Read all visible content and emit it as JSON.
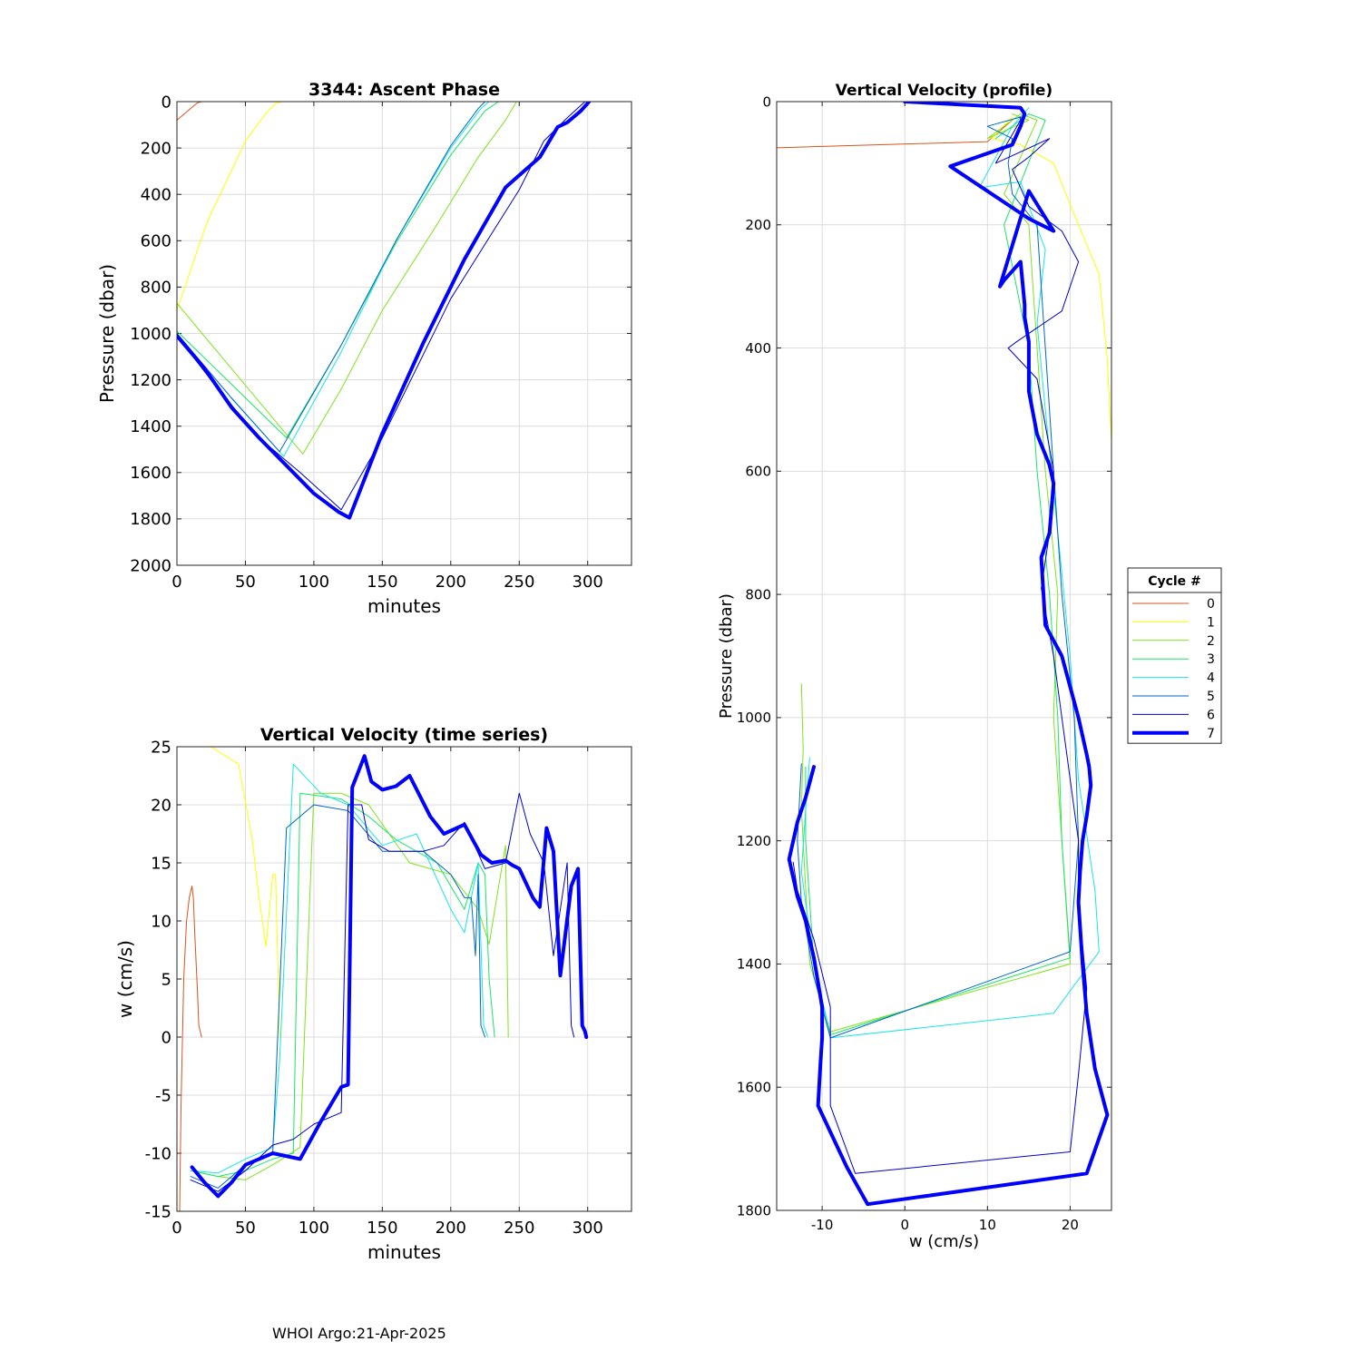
{
  "footer": "WHOI Argo:21-Apr-2025",
  "series_colors": [
    "#d95319",
    "#ffff00",
    "#7fe31a",
    "#19e566",
    "#19e5e5",
    "#0066cc",
    "#0000cc",
    "#0000ff"
  ],
  "chart_data": [
    {
      "id": "ascent",
      "type": "line",
      "title": "3344: Ascent Phase",
      "xlabel": "minutes",
      "ylabel": "Pressure (dbar)",
      "xlim": [
        0,
        332
      ],
      "ylim": [
        0,
        2000
      ],
      "y_reversed": true,
      "xticks": [
        0,
        50,
        100,
        150,
        200,
        250,
        300
      ],
      "yticks": [
        0,
        200,
        400,
        600,
        800,
        1000,
        1200,
        1400,
        1600,
        1800,
        2000
      ],
      "grid": true,
      "series": [
        {
          "name": "0",
          "x": [
            0,
            15,
            18
          ],
          "y": [
            80,
            5,
            0
          ]
        },
        {
          "name": "1",
          "x": [
            0,
            22,
            50,
            65,
            72,
            76
          ],
          "y": [
            900,
            520,
            170,
            50,
            8,
            0
          ]
        },
        {
          "name": "2",
          "x": [
            0,
            92,
            120,
            150,
            190,
            220,
            240,
            248
          ],
          "y": [
            870,
            1520,
            1240,
            900,
            530,
            240,
            80,
            0
          ]
        },
        {
          "name": "3",
          "x": [
            0,
            80,
            120,
            160,
            200,
            225,
            235
          ],
          "y": [
            990,
            1450,
            1050,
            610,
            230,
            40,
            0
          ]
        },
        {
          "name": "4",
          "x": [
            0,
            40,
            78,
            120,
            160,
            200,
            222,
            228
          ],
          "y": [
            1000,
            1280,
            1530,
            1080,
            600,
            200,
            30,
            0
          ]
        },
        {
          "name": "5",
          "x": [
            0,
            40,
            75,
            120,
            160,
            200,
            220,
            225
          ],
          "y": [
            1000,
            1280,
            1510,
            1050,
            600,
            190,
            30,
            0
          ]
        },
        {
          "name": "6",
          "x": [
            0,
            30,
            60,
            90,
            120,
            150,
            200,
            250,
            268,
            285,
            298
          ],
          "y": [
            1010,
            1240,
            1450,
            1600,
            1760,
            1450,
            850,
            380,
            170,
            70,
            0
          ]
        },
        {
          "name": "7",
          "x": [
            0,
            20,
            40,
            60,
            80,
            100,
            118,
            126,
            150,
            180,
            210,
            240,
            265,
            278,
            285,
            295,
            301
          ],
          "y": [
            1010,
            1150,
            1320,
            1450,
            1570,
            1690,
            1770,
            1795,
            1430,
            1040,
            680,
            370,
            240,
            110,
            90,
            40,
            0
          ]
        }
      ]
    },
    {
      "id": "timeseries",
      "type": "line",
      "title": "Vertical Velocity (time series)",
      "xlabel": "minutes",
      "ylabel": "w (cm/s)",
      "xlim": [
        0,
        332
      ],
      "ylim": [
        -15,
        25
      ],
      "xticks": [
        0,
        50,
        100,
        150,
        200,
        250,
        300
      ],
      "yticks": [
        -15,
        -10,
        -5,
        0,
        5,
        10,
        15,
        20,
        25
      ],
      "grid": true,
      "series": [
        {
          "name": "0",
          "x": [
            2,
            3,
            5,
            7,
            9,
            11,
            12,
            13,
            15,
            16,
            18
          ],
          "y": [
            -15,
            -6,
            5,
            10,
            12,
            13,
            12,
            9,
            4,
            1,
            0
          ]
        },
        {
          "name": "1",
          "x": [
            18,
            25,
            45,
            55,
            60,
            65,
            70,
            72,
            74,
            75
          ],
          "y": [
            25,
            25,
            23.5,
            17,
            12,
            7.8,
            14,
            14,
            5,
            0
          ]
        },
        {
          "name": "2",
          "x": [
            10,
            30,
            50,
            70,
            90,
            100,
            120,
            140,
            170,
            200,
            220,
            228,
            235,
            240,
            242
          ],
          "y": [
            -11.5,
            -12,
            -12.3,
            -11,
            -9.5,
            21,
            21,
            20,
            15,
            14,
            11,
            8,
            13,
            16.5,
            0
          ]
        },
        {
          "name": "3",
          "x": [
            10,
            30,
            50,
            70,
            85,
            90,
            120,
            140,
            160,
            190,
            210,
            220,
            225,
            228,
            232
          ],
          "y": [
            -11.5,
            -12,
            -11.5,
            -10.5,
            -10,
            21,
            20.5,
            19,
            17,
            15,
            11,
            15,
            14,
            5,
            0
          ]
        },
        {
          "name": "4",
          "x": [
            10,
            30,
            50,
            70,
            75,
            85,
            105,
            125,
            150,
            175,
            200,
            210,
            215,
            220,
            224,
            227
          ],
          "y": [
            -11.5,
            -11.7,
            -10.5,
            -9.5,
            -2,
            23.5,
            21,
            20,
            16.5,
            17.5,
            11,
            9,
            12,
            15,
            1,
            0
          ]
        },
        {
          "name": "5",
          "x": [
            10,
            30,
            50,
            70,
            75,
            80,
            100,
            125,
            150,
            180,
            200,
            210,
            215,
            218,
            220,
            222,
            225
          ],
          "y": [
            -12,
            -13,
            -11,
            -10,
            4,
            18,
            20,
            19.5,
            16,
            16,
            14,
            12,
            12,
            7,
            14,
            1,
            0
          ]
        },
        {
          "name": "6",
          "x": [
            10,
            30,
            50,
            70,
            85,
            100,
            120,
            125,
            135,
            140,
            155,
            180,
            195,
            210,
            225,
            240,
            250,
            258,
            268,
            275,
            285,
            288,
            290
          ],
          "y": [
            -12.3,
            -13.3,
            -11.5,
            -9.3,
            -8.8,
            -7.5,
            -6.5,
            20,
            20,
            17,
            16,
            16,
            16.5,
            18.5,
            14.5,
            15,
            21,
            17.5,
            15,
            7,
            15,
            1,
            0
          ]
        },
        {
          "name": "7",
          "x": [
            11,
            20,
            30,
            40,
            50,
            70,
            90,
            105,
            120,
            125,
            128,
            137,
            142,
            150,
            160,
            170,
            185,
            195,
            210,
            222,
            230,
            240,
            245,
            250,
            260,
            265,
            270,
            275,
            280,
            288,
            293,
            296,
            298,
            299
          ],
          "y": [
            -11.2,
            -12.5,
            -13.7,
            -12.5,
            -11,
            -10,
            -10.5,
            -7.3,
            -4.3,
            -4.1,
            21.5,
            24.2,
            22,
            21.3,
            21.6,
            22.5,
            19,
            17.5,
            18.3,
            15.7,
            15,
            15.2,
            14.8,
            14.5,
            12,
            11.2,
            18,
            16,
            5.3,
            13,
            14.5,
            1,
            0.5,
            0
          ]
        }
      ]
    },
    {
      "id": "profile",
      "type": "line",
      "title": "Vertical Velocity (profile)",
      "xlabel": "w (cm/s)",
      "ylabel": "Pressure (dbar)",
      "xlim": [
        -15.5,
        25
      ],
      "ylim": [
        0,
        1800
      ],
      "y_reversed": true,
      "xticks": [
        -10,
        0,
        10,
        20
      ],
      "yticks": [
        0,
        200,
        400,
        600,
        800,
        1000,
        1200,
        1400,
        1600,
        1800
      ],
      "grid": true,
      "legend": {
        "title": "Cycle #",
        "entries": [
          "0",
          "1",
          "2",
          "3",
          "4",
          "5",
          "6",
          "7"
        ],
        "placement": "right"
      },
      "series": [
        {
          "name": "0",
          "x": [
            -15.5,
            10,
            13
          ],
          "y": [
            75,
            65,
            30
          ]
        },
        {
          "name": "1",
          "x": [
            13,
            10.5,
            14,
            18,
            21,
            23.5,
            24.5,
            25,
            25
          ],
          "y": [
            25,
            60,
            70,
            100,
            200,
            280,
            420,
            550,
            680
          ]
        },
        {
          "name": "2",
          "x": [
            -12.5,
            -12.3,
            -12.5,
            -11.5,
            -9,
            20,
            19,
            18,
            18.5,
            17,
            16,
            15,
            12,
            16,
            14,
            10,
            15,
            13
          ],
          "y": [
            945,
            1050,
            1150,
            1400,
            1510,
            1400,
            1200,
            1000,
            800,
            600,
            400,
            200,
            150,
            30,
            20,
            60,
            30,
            20
          ]
        },
        {
          "name": "3",
          "x": [
            -12,
            -12,
            -11,
            -9,
            20,
            19,
            18.5,
            17.5,
            16,
            15,
            12,
            17,
            15,
            11
          ],
          "y": [
            1080,
            1200,
            1400,
            1515,
            1390,
            1200,
            1000,
            800,
            600,
            400,
            200,
            30,
            20,
            60
          ]
        },
        {
          "name": "4",
          "x": [
            -11.5,
            -12,
            -12.5,
            -11,
            -9,
            18,
            23.5,
            23,
            21,
            20,
            18.5,
            17,
            16,
            17,
            15,
            14,
            9,
            13,
            15
          ],
          "y": [
            1065,
            1150,
            1250,
            1400,
            1520,
            1480,
            1380,
            1280,
            1100,
            900,
            700,
            500,
            360,
            240,
            170,
            130,
            140,
            40,
            10
          ]
        },
        {
          "name": "5",
          "x": [
            -12.5,
            -13,
            -12.5,
            -11,
            -9,
            20,
            21,
            20.5,
            19,
            18,
            17,
            16,
            13,
            12.5,
            13,
            10,
            14
          ],
          "y": [
            1075,
            1200,
            1300,
            1420,
            1520,
            1380,
            1200,
            1000,
            800,
            600,
            400,
            200,
            150,
            100,
            60,
            40,
            25
          ]
        },
        {
          "name": "6",
          "x": [
            -13.5,
            -13,
            -11,
            -9,
            -9,
            -9,
            -6,
            20,
            21,
            22,
            21,
            21,
            19,
            18,
            16.5,
            17.5,
            18,
            16,
            12.5,
            13.5,
            19,
            21,
            19,
            15,
            13,
            15,
            17.5,
            11,
            14,
            14
          ],
          "y": [
            1235,
            1280,
            1360,
            1470,
            1520,
            1630,
            1740,
            1705,
            1580,
            1440,
            1300,
            1200,
            1000,
            900,
            790,
            700,
            600,
            450,
            400,
            390,
            340,
            260,
            210,
            170,
            110,
            90,
            60,
            100,
            30,
            25
          ]
        },
        {
          "name": "7",
          "x": [
            -11,
            -12,
            -13,
            -14,
            -13,
            -12,
            -11,
            -10.5,
            -10,
            -10,
            -10.2,
            -10.5,
            -7,
            -4.5,
            22,
            24.5,
            23,
            22,
            21.5,
            21,
            21.2,
            21.5,
            22,
            22.5,
            22.3,
            22,
            21,
            19,
            17,
            16.5,
            17.5,
            18,
            17.5,
            16,
            15,
            15,
            14.5,
            14.5,
            14,
            12,
            11.5,
            15,
            18,
            15,
            5.5,
            13,
            14,
            14.5,
            14,
            0
          ],
          "y": [
            1080,
            1130,
            1170,
            1230,
            1290,
            1330,
            1390,
            1430,
            1470,
            1520,
            1560,
            1630,
            1730,
            1790,
            1740,
            1645,
            1570,
            1480,
            1400,
            1300,
            1250,
            1200,
            1160,
            1110,
            1080,
            1060,
            1000,
            900,
            850,
            740,
            700,
            620,
            590,
            540,
            470,
            390,
            350,
            330,
            260,
            290,
            300,
            145,
            210,
            190,
            105,
            70,
            40,
            20,
            10,
            0
          ]
        }
      ]
    }
  ]
}
